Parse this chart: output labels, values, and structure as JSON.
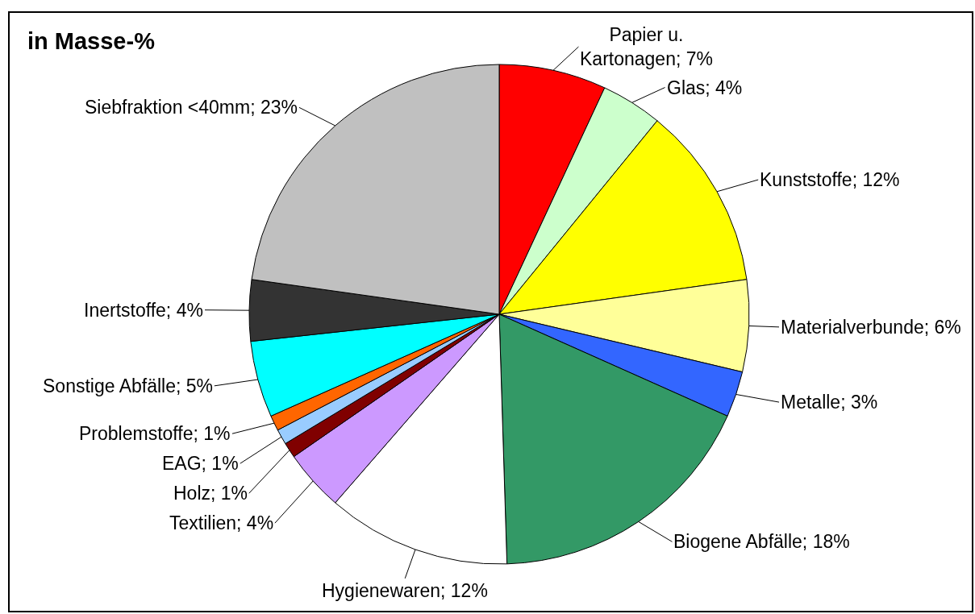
{
  "chart_data": {
    "type": "pie",
    "title": "in Masse-%",
    "categories": [
      "Papier u. Kartonagen",
      "Glas",
      "Kunststoffe",
      "Materialverbunde",
      "Metalle",
      "Biogene Abfälle",
      "Hygienewaren",
      "Textilien",
      "Holz",
      "EAG",
      "Problemstoffe",
      "Sonstige Abfälle",
      "Inertstoffe",
      "Siebfraktion <40mm"
    ],
    "values": [
      7,
      4,
      12,
      6,
      3,
      18,
      12,
      4,
      1,
      1,
      1,
      5,
      4,
      23
    ],
    "value_labels": [
      "7%",
      "4%",
      "12%",
      "6%",
      "3%",
      "18%",
      "12%",
      "4%",
      "1%",
      "1%",
      "1%",
      "5%",
      "4%",
      "23%"
    ],
    "colors": [
      "#ff0000",
      "#ccffcc",
      "#ffff00",
      "#ffff99",
      "#3366ff",
      "#339966",
      "#ffffff",
      "#cc99ff",
      "#800000",
      "#99ccff",
      "#ff6600",
      "#00ffff",
      "#333333",
      "#c0c0c0"
    ]
  }
}
